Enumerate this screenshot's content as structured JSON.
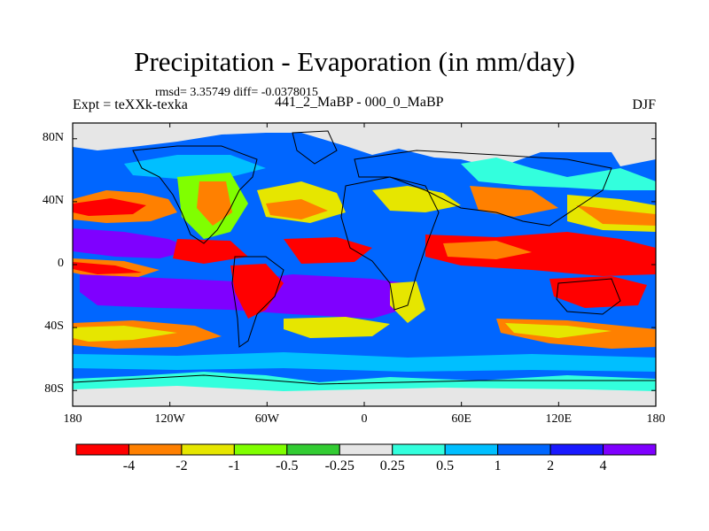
{
  "title": "Precipitation - Evaporation (in mm/day)",
  "stats_line": "rmsd= 3.35749 diff= -0.0378015",
  "experiment_label": "Expt = teXXk-texka",
  "cases_label": "441_2_MaBP - 000_0_MaBP",
  "season_label": "DJF",
  "axes": {
    "x_ticks": [
      {
        "label": "180",
        "lon": -180
      },
      {
        "label": "120W",
        "lon": -120
      },
      {
        "label": "60W",
        "lon": -60
      },
      {
        "label": "0",
        "lon": 0
      },
      {
        "label": "60E",
        "lon": 60
      },
      {
        "label": "120E",
        "lon": 120
      },
      {
        "label": "180",
        "lon": 180
      }
    ],
    "y_ticks": [
      {
        "label": "80N",
        "lat": 80
      },
      {
        "label": "40N",
        "lat": 40
      },
      {
        "label": "0",
        "lat": 0
      },
      {
        "label": "40S",
        "lat": -40
      },
      {
        "label": "80S",
        "lat": -80
      }
    ]
  },
  "colorbar": {
    "colors": [
      "#ff0000",
      "#ff8000",
      "#e6e600",
      "#80ff00",
      "#33cc33",
      "#e6e6e6",
      "#33ffdd",
      "#00bfff",
      "#0066ff",
      "#1a1aff",
      "#7f00ff"
    ],
    "tick_labels": [
      "-4",
      "-2",
      "-1",
      "-0.5",
      "-0.25",
      "0.25",
      "0.5",
      "1",
      "2",
      "4"
    ]
  }
}
